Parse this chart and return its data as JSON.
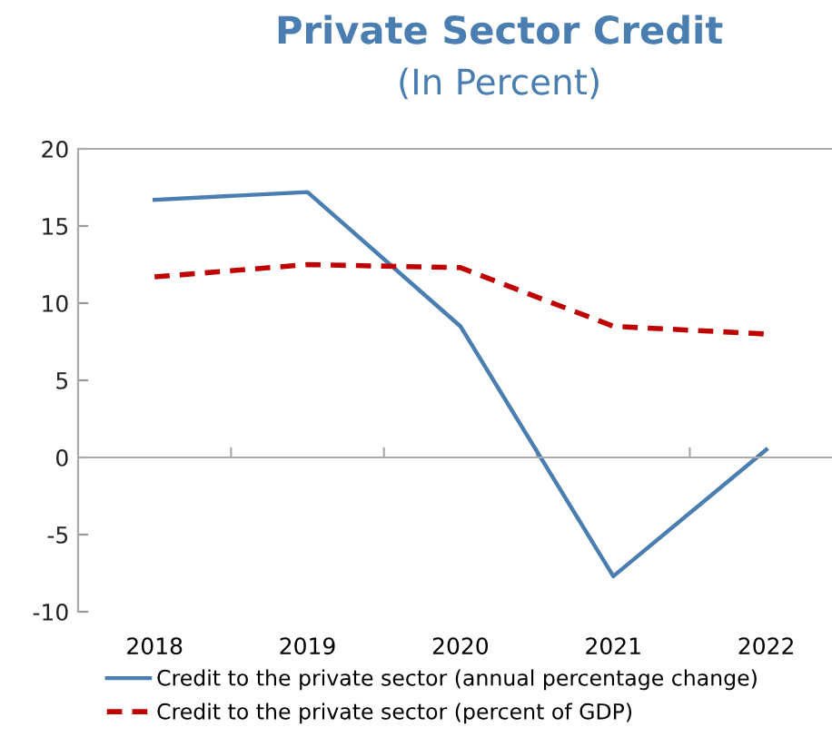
{
  "chart_data": {
    "type": "line",
    "title": "Private Sector Credit",
    "subtitle": "(In Percent)",
    "categories": [
      "2018",
      "2019",
      "2020",
      "2021",
      "2022"
    ],
    "series": [
      {
        "name": "Credit to the private sector (annual percentage change)",
        "color": "#4a7eb0",
        "values": [
          16.7,
          17.2,
          8.5,
          -7.7,
          0.5
        ],
        "line_style": "solid"
      },
      {
        "name": "Credit to the private sector (percent of GDP)",
        "color": "#c00000",
        "values": [
          11.7,
          12.5,
          12.3,
          8.5,
          8.0
        ],
        "line_style": "dashed"
      }
    ],
    "ylim": [
      -10,
      20
    ],
    "yticks": [
      -10,
      -5,
      0,
      5,
      10,
      15,
      20
    ],
    "legend": "bottom",
    "marker": "none"
  }
}
